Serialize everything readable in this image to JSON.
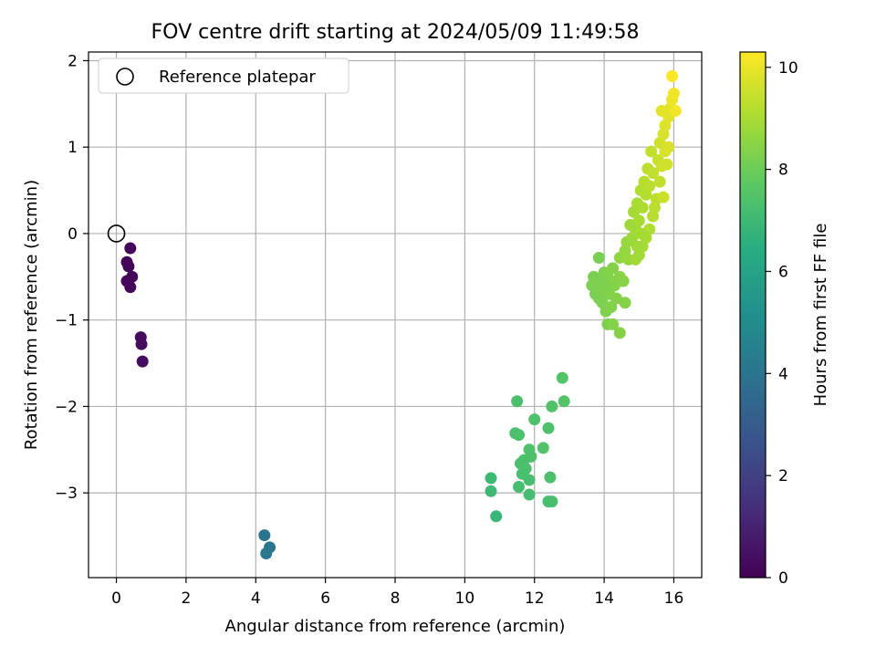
{
  "chart_data": {
    "type": "scatter",
    "title": "FOV centre drift starting at 2024/05/09 11:49:58",
    "xlabel": "Angular distance from reference (arcmin)",
    "ylabel": "Rotation from reference (arcmin)",
    "xlim": [
      -0.8,
      16.8
    ],
    "ylim": [
      -3.98,
      2.1
    ],
    "xticks": [
      0,
      2,
      4,
      6,
      8,
      10,
      12,
      14,
      16
    ],
    "yticks": [
      -3,
      -2,
      -1,
      0,
      1,
      2
    ],
    "grid": true,
    "legend": {
      "position": "top-left",
      "entries": [
        "Reference platepar"
      ]
    },
    "reference": {
      "x": 0,
      "y": 0,
      "label": "Reference platepar"
    },
    "colorbar": {
      "label": "Hours from first FF file",
      "colormap": "viridis",
      "range": [
        0,
        10.3
      ],
      "ticks": [
        0,
        2,
        4,
        6,
        8,
        10
      ]
    },
    "points": [
      {
        "x": 0.4,
        "y": -0.17,
        "c": 0.1
      },
      {
        "x": 0.3,
        "y": -0.33,
        "c": 0.1
      },
      {
        "x": 0.35,
        "y": -0.38,
        "c": 0.15
      },
      {
        "x": 0.45,
        "y": -0.5,
        "c": 0.15
      },
      {
        "x": 0.3,
        "y": -0.55,
        "c": 0.2
      },
      {
        "x": 0.4,
        "y": -0.62,
        "c": 0.2
      },
      {
        "x": 0.7,
        "y": -1.2,
        "c": 0.3
      },
      {
        "x": 0.72,
        "y": -1.28,
        "c": 0.3
      },
      {
        "x": 0.75,
        "y": -1.48,
        "c": 0.35
      },
      {
        "x": 4.25,
        "y": -3.49,
        "c": 4.0
      },
      {
        "x": 4.4,
        "y": -3.63,
        "c": 4.05
      },
      {
        "x": 4.3,
        "y": -3.7,
        "c": 4.1
      },
      {
        "x": 11.5,
        "y": -1.94,
        "c": 7.3
      },
      {
        "x": 11.45,
        "y": -2.31,
        "c": 7.3
      },
      {
        "x": 11.55,
        "y": -2.33,
        "c": 7.35
      },
      {
        "x": 12.0,
        "y": -2.15,
        "c": 7.4
      },
      {
        "x": 12.4,
        "y": -2.25,
        "c": 7.4
      },
      {
        "x": 12.5,
        "y": -2.0,
        "c": 7.45
      },
      {
        "x": 12.8,
        "y": -1.67,
        "c": 7.5
      },
      {
        "x": 12.85,
        "y": -1.94,
        "c": 7.5
      },
      {
        "x": 12.25,
        "y": -2.48,
        "c": 7.45
      },
      {
        "x": 11.85,
        "y": -2.5,
        "c": 7.4
      },
      {
        "x": 11.9,
        "y": -2.58,
        "c": 7.35
      },
      {
        "x": 11.7,
        "y": -2.62,
        "c": 7.35
      },
      {
        "x": 11.6,
        "y": -2.66,
        "c": 7.3
      },
      {
        "x": 11.75,
        "y": -2.72,
        "c": 7.3
      },
      {
        "x": 11.65,
        "y": -2.78,
        "c": 7.25
      },
      {
        "x": 11.85,
        "y": -2.85,
        "c": 7.25
      },
      {
        "x": 11.55,
        "y": -2.93,
        "c": 7.2
      },
      {
        "x": 11.85,
        "y": -3.02,
        "c": 7.2
      },
      {
        "x": 12.45,
        "y": -2.82,
        "c": 7.3
      },
      {
        "x": 12.4,
        "y": -3.1,
        "c": 7.25
      },
      {
        "x": 12.5,
        "y": -3.1,
        "c": 7.25
      },
      {
        "x": 10.75,
        "y": -2.83,
        "c": 7.0
      },
      {
        "x": 10.75,
        "y": -2.98,
        "c": 7.0
      },
      {
        "x": 10.9,
        "y": -3.27,
        "c": 6.9
      },
      {
        "x": 13.85,
        "y": -0.28,
        "c": 8.2
      },
      {
        "x": 13.7,
        "y": -0.5,
        "c": 8.2
      },
      {
        "x": 13.8,
        "y": -0.55,
        "c": 8.25
      },
      {
        "x": 13.65,
        "y": -0.6,
        "c": 8.25
      },
      {
        "x": 13.75,
        "y": -0.7,
        "c": 8.2
      },
      {
        "x": 13.85,
        "y": -0.75,
        "c": 8.2
      },
      {
        "x": 13.95,
        "y": -0.8,
        "c": 8.25
      },
      {
        "x": 14.05,
        "y": -0.9,
        "c": 8.3
      },
      {
        "x": 14.1,
        "y": -1.05,
        "c": 8.3
      },
      {
        "x": 14.25,
        "y": -1.05,
        "c": 8.35
      },
      {
        "x": 14.45,
        "y": -1.15,
        "c": 8.4
      },
      {
        "x": 14.6,
        "y": -0.8,
        "c": 8.4
      },
      {
        "x": 14.0,
        "y": -0.45,
        "c": 8.3
      },
      {
        "x": 14.1,
        "y": -0.5,
        "c": 8.35
      },
      {
        "x": 14.2,
        "y": -0.55,
        "c": 8.35
      },
      {
        "x": 14.3,
        "y": -0.6,
        "c": 8.4
      },
      {
        "x": 14.0,
        "y": -0.65,
        "c": 8.3
      },
      {
        "x": 14.15,
        "y": -0.7,
        "c": 8.35
      },
      {
        "x": 14.35,
        "y": -0.75,
        "c": 8.4
      },
      {
        "x": 14.05,
        "y": -0.6,
        "c": 8.3
      },
      {
        "x": 14.45,
        "y": -0.5,
        "c": 8.45
      },
      {
        "x": 14.55,
        "y": -0.55,
        "c": 8.45
      },
      {
        "x": 13.9,
        "y": -0.55,
        "c": 8.25
      },
      {
        "x": 14.25,
        "y": -0.4,
        "c": 8.4
      },
      {
        "x": 14.2,
        "y": -0.85,
        "c": 8.35
      },
      {
        "x": 13.95,
        "y": -0.65,
        "c": 8.3
      },
      {
        "x": 14.45,
        "y": -0.28,
        "c": 8.6
      },
      {
        "x": 14.6,
        "y": -0.2,
        "c": 8.65
      },
      {
        "x": 14.7,
        "y": -0.3,
        "c": 8.7
      },
      {
        "x": 14.65,
        "y": -0.1,
        "c": 8.7
      },
      {
        "x": 14.8,
        "y": -0.05,
        "c": 8.75
      },
      {
        "x": 14.75,
        "y": 0.1,
        "c": 8.8
      },
      {
        "x": 14.9,
        "y": 0.05,
        "c": 8.85
      },
      {
        "x": 14.85,
        "y": 0.25,
        "c": 8.9
      },
      {
        "x": 15.0,
        "y": 0.15,
        "c": 8.95
      },
      {
        "x": 14.95,
        "y": 0.35,
        "c": 9.0
      },
      {
        "x": 15.1,
        "y": 0.3,
        "c": 9.05
      },
      {
        "x": 15.05,
        "y": 0.5,
        "c": 9.1
      },
      {
        "x": 15.2,
        "y": 0.45,
        "c": 9.15
      },
      {
        "x": 15.15,
        "y": 0.6,
        "c": 9.2
      },
      {
        "x": 15.3,
        "y": 0.55,
        "c": 9.25
      },
      {
        "x": 15.25,
        "y": 0.75,
        "c": 9.3
      },
      {
        "x": 15.4,
        "y": 0.7,
        "c": 9.35
      },
      {
        "x": 15.35,
        "y": 0.95,
        "c": 9.4
      },
      {
        "x": 15.55,
        "y": 0.85,
        "c": 9.45
      },
      {
        "x": 15.6,
        "y": 0.6,
        "c": 9.4
      },
      {
        "x": 15.5,
        "y": 0.4,
        "c": 9.3
      },
      {
        "x": 15.4,
        "y": 0.2,
        "c": 9.2
      },
      {
        "x": 15.3,
        "y": 0.05,
        "c": 9.1
      },
      {
        "x": 15.2,
        "y": -0.05,
        "c": 9.0
      },
      {
        "x": 15.1,
        "y": -0.15,
        "c": 8.95
      },
      {
        "x": 15.0,
        "y": -0.25,
        "c": 8.9
      },
      {
        "x": 14.9,
        "y": -0.3,
        "c": 8.85
      },
      {
        "x": 15.45,
        "y": 0.3,
        "c": 9.25
      },
      {
        "x": 15.7,
        "y": 0.42,
        "c": 9.5
      },
      {
        "x": 15.65,
        "y": 0.78,
        "c": 9.55
      },
      {
        "x": 15.8,
        "y": 0.8,
        "c": 9.6
      },
      {
        "x": 15.05,
        "y": 0.0,
        "c": 8.95
      },
      {
        "x": 14.95,
        "y": -0.15,
        "c": 8.85
      },
      {
        "x": 15.6,
        "y": 1.05,
        "c": 9.6
      },
      {
        "x": 15.7,
        "y": 1.15,
        "c": 9.7
      },
      {
        "x": 15.75,
        "y": 1.25,
        "c": 9.8
      },
      {
        "x": 15.85,
        "y": 1.35,
        "c": 9.85
      },
      {
        "x": 15.65,
        "y": 1.42,
        "c": 9.9
      },
      {
        "x": 15.9,
        "y": 1.45,
        "c": 9.95
      },
      {
        "x": 15.95,
        "y": 1.55,
        "c": 10.05
      },
      {
        "x": 16.0,
        "y": 1.62,
        "c": 10.1
      },
      {
        "x": 16.05,
        "y": 1.42,
        "c": 10.15
      },
      {
        "x": 15.95,
        "y": 1.82,
        "c": 10.25
      },
      {
        "x": 15.85,
        "y": 1.0,
        "c": 9.75
      },
      {
        "x": 15.75,
        "y": 0.95,
        "c": 9.7
      }
    ]
  }
}
